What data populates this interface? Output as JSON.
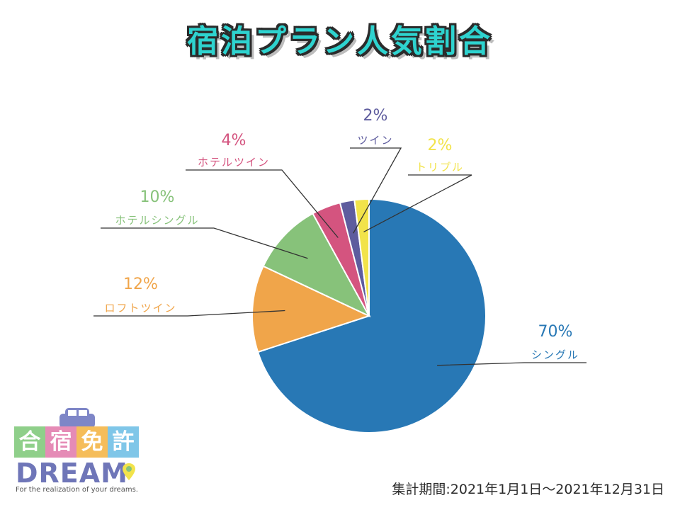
{
  "chart_data": {
    "type": "pie",
    "title": "宿泊プラン人気割合",
    "start_angle_deg": 0,
    "direction": "clockwise",
    "slices": [
      {
        "label": "シングル",
        "value": 70,
        "pct_label": "70%",
        "color": "#2878b5"
      },
      {
        "label": "ロフトツイン",
        "value": 12,
        "pct_label": "12%",
        "color": "#f0a54a"
      },
      {
        "label": "ホテルシングル",
        "value": 10,
        "pct_label": "10%",
        "color": "#87c27a"
      },
      {
        "label": "ホテルツイン",
        "value": 4,
        "pct_label": "4%",
        "color": "#d4547f"
      },
      {
        "label": "ツイン",
        "value": 2,
        "pct_label": "2%",
        "color": "#5e5c9e"
      },
      {
        "label": "トリプル",
        "value": 2,
        "pct_label": "2%",
        "color": "#f2e34a"
      }
    ]
  },
  "footer": {
    "period": "集計期間:2021年1月1日～2021年12月31日"
  },
  "logo": {
    "kanji": [
      "合",
      "宿",
      "免",
      "許"
    ],
    "kanji_colors": [
      "#8fcf8a",
      "#e58bb6",
      "#f5bd5a",
      "#7fc6e8"
    ],
    "name": "DREAM",
    "tagline": "For the realization of your dreams."
  }
}
